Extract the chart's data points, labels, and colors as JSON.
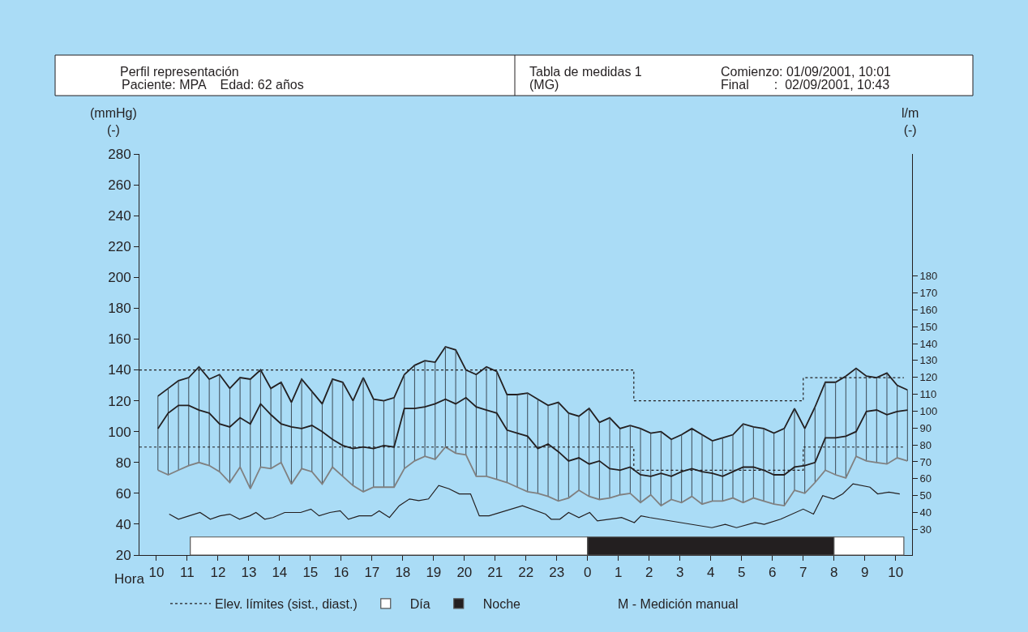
{
  "chart_data": {
    "type": "line",
    "title": "Perfil representación",
    "xlabel": "Hora",
    "ylabel": "(mmHg)\n(-)",
    "y2label": "l/m\n(-)",
    "annotations": [
      "Paciente: MPA    Edad: 62 años",
      "Tabla de medidas 1",
      "(MG)",
      "Comienzo: 01/09/2001, 10:01",
      "Final       :  02/09/2001, 10:43",
      "M - Medición manual"
    ],
    "x": [
      "2001-09-01T10:03",
      "2001-09-01T10:23",
      "2001-09-01T10:43",
      "2001-09-01T11:03",
      "2001-09-01T11:23",
      "2001-09-01T11:43",
      "2001-09-01T12:03",
      "2001-09-01T12:23",
      "2001-09-01T12:43",
      "2001-09-01T13:03",
      "2001-09-01T13:23",
      "2001-09-01T13:43",
      "2001-09-01T14:03",
      "2001-09-01T14:23",
      "2001-09-01T14:43",
      "2001-09-01T15:03",
      "2001-09-01T15:23",
      "2001-09-01T15:43",
      "2001-09-01T16:03",
      "2001-09-01T16:23",
      "2001-09-01T16:43",
      "2001-09-01T17:03",
      "2001-09-01T17:23",
      "2001-09-01T17:43",
      "2001-09-01T18:03",
      "2001-09-01T18:23",
      "2001-09-01T18:43",
      "2001-09-01T19:03",
      "2001-09-01T19:23",
      "2001-09-01T19:43",
      "2001-09-01T20:03",
      "2001-09-01T20:23",
      "2001-09-01T20:43",
      "2001-09-01T21:03",
      "2001-09-01T21:23",
      "2001-09-01T21:43",
      "2001-09-01T22:03",
      "2001-09-01T22:23",
      "2001-09-01T22:43",
      "2001-09-01T23:03",
      "2001-09-01T23:23",
      "2001-09-01T23:43",
      "2001-09-02T00:03",
      "2001-09-02T00:23",
      "2001-09-02T00:43",
      "2001-09-02T01:03",
      "2001-09-02T01:23",
      "2001-09-02T01:43",
      "2001-09-02T02:03",
      "2001-09-02T02:23",
      "2001-09-02T02:43",
      "2001-09-02T03:03",
      "2001-09-02T03:23",
      "2001-09-02T03:43",
      "2001-09-02T04:03",
      "2001-09-02T04:23",
      "2001-09-02T04:43",
      "2001-09-02T05:03",
      "2001-09-02T05:23",
      "2001-09-02T05:43",
      "2001-09-02T06:03",
      "2001-09-02T06:23",
      "2001-09-02T06:43",
      "2001-09-02T07:03",
      "2001-09-02T07:23",
      "2001-09-02T07:43",
      "2001-09-02T08:03",
      "2001-09-02T08:23",
      "2001-09-02T08:43",
      "2001-09-02T09:03",
      "2001-09-02T09:23",
      "2001-09-02T09:43",
      "2001-09-02T10:03",
      "2001-09-02T10:23"
    ],
    "series": [
      {
        "color": "#231f20",
        "values": [
          123,
          128,
          133,
          135,
          142,
          134,
          137,
          128,
          135,
          134,
          140,
          128,
          132,
          119,
          134,
          126,
          118,
          134,
          132,
          120,
          135,
          121,
          120,
          122,
          137,
          143,
          146,
          145,
          155,
          153,
          140,
          137,
          142,
          139,
          124,
          124,
          125,
          121,
          117,
          119,
          112,
          110,
          115,
          106,
          109,
          102,
          104,
          102,
          99,
          100,
          95,
          98,
          102,
          98,
          94,
          96,
          98,
          105,
          103,
          102,
          99,
          102,
          115,
          102,
          116,
          132,
          132,
          136,
          141,
          136,
          135,
          138,
          130,
          127
        ]
      },
      {
        "color": "#231f20",
        "values": [
          102,
          112,
          117,
          117,
          114,
          112,
          105,
          103,
          109,
          105,
          118,
          111,
          105,
          103,
          102,
          104,
          100,
          95,
          91,
          89,
          90,
          89,
          91,
          90,
          115,
          115,
          116,
          118,
          121,
          118,
          122,
          116,
          114,
          112,
          101,
          99,
          97,
          89,
          92,
          87,
          81,
          83,
          79,
          81,
          76,
          75,
          77,
          72,
          71,
          73,
          71,
          74,
          76,
          74,
          73,
          71,
          74,
          77,
          77,
          75,
          72,
          72,
          77,
          78,
          80,
          96,
          96,
          97,
          100,
          113,
          114,
          111,
          113,
          114
        ],
        "errors": [
          [
            75,
            123
          ],
          [
            72,
            128
          ],
          [
            75,
            133
          ],
          [
            78,
            135
          ],
          [
            80,
            142
          ],
          [
            78,
            134
          ],
          [
            74,
            137
          ],
          [
            67,
            128
          ],
          [
            77,
            135
          ],
          [
            63,
            134
          ],
          [
            77,
            140
          ],
          [
            76,
            128
          ],
          [
            80,
            132
          ],
          [
            66,
            119
          ],
          [
            76,
            134
          ],
          [
            74,
            126
          ],
          [
            66,
            118
          ],
          [
            77,
            134
          ],
          [
            71,
            132
          ],
          [
            65,
            120
          ],
          [
            61,
            135
          ],
          [
            64,
            121
          ],
          [
            64,
            120
          ],
          [
            64,
            122
          ],
          [
            76,
            137
          ],
          [
            81,
            143
          ],
          [
            84,
            146
          ],
          [
            82,
            145
          ],
          [
            90,
            155
          ],
          [
            86,
            153
          ],
          [
            85,
            140
          ],
          [
            71,
            137
          ],
          [
            71,
            142
          ],
          [
            69,
            139
          ],
          [
            67,
            124
          ],
          [
            64,
            124
          ],
          [
            61,
            125
          ],
          [
            60,
            121
          ],
          [
            58,
            117
          ],
          [
            55,
            119
          ],
          [
            57,
            112
          ],
          [
            62,
            110
          ],
          [
            58,
            115
          ],
          [
            56,
            106
          ],
          [
            57,
            109
          ],
          [
            59,
            102
          ],
          [
            60,
            104
          ],
          [
            54,
            102
          ],
          [
            59,
            99
          ],
          [
            52,
            100
          ],
          [
            56,
            95
          ],
          [
            54,
            98
          ],
          [
            58,
            102
          ],
          [
            53,
            98
          ],
          [
            55,
            94
          ],
          [
            55,
            96
          ],
          [
            57,
            98
          ],
          [
            54,
            105
          ],
          [
            57,
            103
          ],
          [
            55,
            102
          ],
          [
            53,
            99
          ],
          [
            52,
            102
          ],
          [
            62,
            115
          ],
          [
            60,
            102
          ],
          [
            67,
            116
          ],
          [
            75,
            132
          ],
          [
            72,
            132
          ],
          [
            70,
            136
          ],
          [
            84,
            141
          ],
          [
            81,
            136
          ],
          [
            80,
            135
          ],
          [
            79,
            138
          ],
          [
            83,
            130
          ],
          [
            81,
            127
          ]
        ]
      },
      {
        "color": "#808080",
        "values": [
          75,
          72,
          75,
          78,
          80,
          78,
          74,
          67,
          77,
          63,
          77,
          76,
          80,
          66,
          76,
          74,
          66,
          77,
          71,
          65,
          61,
          64,
          64,
          64,
          76,
          81,
          84,
          82,
          90,
          86,
          85,
          71,
          71,
          69,
          67,
          64,
          61,
          60,
          58,
          55,
          57,
          62,
          58,
          56,
          57,
          59,
          60,
          54,
          59,
          52,
          56,
          54,
          58,
          53,
          55,
          55,
          57,
          54,
          57,
          55,
          53,
          52,
          62,
          60,
          67,
          75,
          72,
          70,
          84,
          81,
          80,
          79,
          83,
          81
        ]
      },
      {
        "color": "#231f20",
        "axis": "y2",
        "x": [
          "2001-09-01T10:25",
          "2001-09-01T10:43",
          "2001-09-01T11:04",
          "2001-09-01T11:25",
          "2001-09-01T11:45",
          "2001-09-01T12:04",
          "2001-09-01T12:23",
          "2001-09-01T12:42",
          "2001-09-01T13:02",
          "2001-09-01T13:14",
          "2001-09-01T13:31",
          "2001-09-01T13:47",
          "2001-09-01T14:10",
          "2001-09-01T14:41",
          "2001-09-01T15:01",
          "2001-09-01T15:17",
          "2001-09-01T15:38",
          "2001-09-01T15:58",
          "2001-09-01T16:14",
          "2001-09-01T16:35",
          "2001-09-01T16:59",
          "2001-09-01T17:14",
          "2001-09-01T17:34",
          "2001-09-01T17:53",
          "2001-09-01T18:13",
          "2001-09-01T18:31",
          "2001-09-01T18:50",
          "2001-09-01T19:10",
          "2001-09-01T19:30",
          "2001-09-01T19:50",
          "2001-09-01T20:12",
          "2001-09-01T20:29",
          "2001-09-01T20:48",
          "2001-09-01T21:53",
          "2001-09-01T22:38",
          "2001-09-01T22:49",
          "2001-09-01T23:06",
          "2001-09-01T23:23",
          "2001-09-01T23:43",
          "2001-09-02T00:04",
          "2001-09-02T00:19",
          "2001-09-02T01:06",
          "2001-09-02T01:31",
          "2001-09-02T01:44",
          "2001-09-02T02:01",
          "2001-09-02T04:02",
          "2001-09-02T04:28",
          "2001-09-02T04:50",
          "2001-09-02T05:26",
          "2001-09-02T05:44",
          "2001-09-02T06:16",
          "2001-09-02T07:00",
          "2001-09-02T07:20",
          "2001-09-02T07:38",
          "2001-09-02T07:59",
          "2001-09-02T08:17",
          "2001-09-02T08:37",
          "2001-09-02T09:10",
          "2001-09-02T09:25",
          "2001-09-02T09:47",
          "2001-09-02T10:08"
        ],
        "values": [
          39,
          36,
          38,
          40,
          36,
          38,
          39,
          36,
          38,
          40,
          36,
          37,
          40,
          40,
          42,
          38,
          40,
          41,
          36,
          38,
          38,
          41,
          37,
          44,
          48,
          47,
          48,
          56,
          54,
          51,
          51,
          38,
          38,
          44,
          39,
          36,
          36,
          40,
          37,
          40,
          35,
          37,
          34,
          38,
          37,
          31,
          33,
          31,
          34,
          33,
          36,
          42,
          39,
          50,
          48,
          51,
          57,
          55,
          51,
          52,
          51
        ]
      },
      {
        "type": "step",
        "name": "Elev. límites (sist., diast.)",
        "color": "#231f20",
        "line_style": "dotted",
        "x": [
          "2001-09-01T09:27",
          "2001-09-02T01:30",
          "2001-09-02T07:00",
          "2001-09-02T10:16"
        ],
        "values": [
          140,
          120,
          135,
          135
        ]
      },
      {
        "type": "step",
        "color": "#231f20",
        "line_style": "dotted",
        "x": [
          "2001-09-01T09:27",
          "2001-09-02T01:30",
          "2001-09-02T07:00",
          "2001-09-02T10:16"
        ],
        "values": [
          90,
          75,
          90,
          90
        ]
      }
    ],
    "bands": [
      {
        "axis": "x",
        "from": "2001-09-01T11:06",
        "to": "2001-09-02T00:00",
        "label": "Día",
        "color": "#ffffff"
      },
      {
        "axis": "x",
        "from": "2001-09-02T00:00",
        "to": "2001-09-02T08:00",
        "label": "Noche",
        "color": "#231f20"
      },
      {
        "axis": "x",
        "from": "2001-09-02T08:00",
        "to": "2001-09-02T10:16",
        "color": "#ffffff"
      }
    ],
    "xlim": [
      "2001-09-01T09:27",
      "2001-09-02T10:32"
    ],
    "xticks": [
      {
        "value": "2001-09-01T10:00",
        "label": "10"
      },
      {
        "value": "2001-09-01T11:00",
        "label": "11"
      },
      {
        "value": "2001-09-01T12:00",
        "label": "12"
      },
      {
        "value": "2001-09-01T13:00",
        "label": "13"
      },
      {
        "value": "2001-09-01T14:00",
        "label": "14"
      },
      {
        "value": "2001-09-01T15:00",
        "label": "15"
      },
      {
        "value": "2001-09-01T16:00",
        "label": "16"
      },
      {
        "value": "2001-09-01T17:00",
        "label": "17"
      },
      {
        "value": "2001-09-01T18:00",
        "label": "18"
      },
      {
        "value": "2001-09-01T19:00",
        "label": "19"
      },
      {
        "value": "2001-09-01T20:00",
        "label": "20"
      },
      {
        "value": "2001-09-01T21:00",
        "label": "21"
      },
      {
        "value": "2001-09-01T22:00",
        "label": "22"
      },
      {
        "value": "2001-09-01T23:00",
        "label": "23"
      },
      {
        "value": "2001-09-02T00:00",
        "label": "0"
      },
      {
        "value": "2001-09-02T01:00",
        "label": "1"
      },
      {
        "value": "2001-09-02T02:00",
        "label": "2"
      },
      {
        "value": "2001-09-02T03:00",
        "label": "3"
      },
      {
        "value": "2001-09-02T04:00",
        "label": "4"
      },
      {
        "value": "2001-09-02T05:00",
        "label": "5"
      },
      {
        "value": "2001-09-02T06:00",
        "label": "6"
      },
      {
        "value": "2001-09-02T07:00",
        "label": "7"
      },
      {
        "value": "2001-09-02T08:00",
        "label": "8"
      },
      {
        "value": "2001-09-02T09:00",
        "label": "9"
      },
      {
        "value": "2001-09-02T10:00",
        "label": "10"
      }
    ],
    "ylim": [
      20,
      280
    ],
    "yticks": [
      20,
      40,
      60,
      80,
      100,
      120,
      140,
      160,
      180,
      200,
      220,
      240,
      260,
      280
    ],
    "y2lim": [
      14.8,
      252.3
    ],
    "y2ticks": [
      30,
      40,
      50,
      60,
      70,
      80,
      90,
      100,
      110,
      120,
      130,
      140,
      150,
      160,
      170,
      180
    ],
    "grid": false,
    "legend": "bottom"
  }
}
